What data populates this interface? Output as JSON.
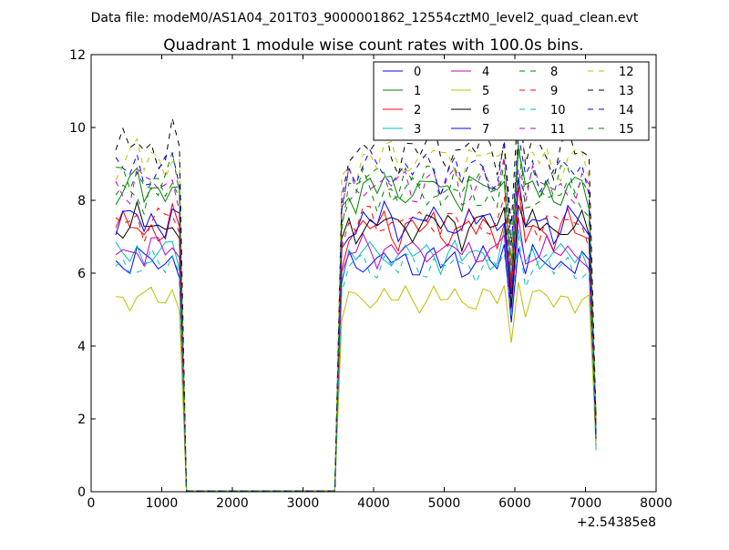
{
  "chart_data": {
    "type": "line",
    "suptitle": "Data file: modeM0/AS1A04_201T03_9000001862_12554cztM0_level2_quad_clean.evt",
    "title": "Quadrant 1 module wise count rates with 100.0s bins.",
    "xlabel": "",
    "ylabel": "",
    "x_offset_label": "+2.54385e8",
    "xlim": [
      0,
      8000
    ],
    "ylim": [
      0,
      12
    ],
    "xticks": [
      0,
      1000,
      2000,
      3000,
      4000,
      5000,
      6000,
      7000,
      8000
    ],
    "yticks": [
      0,
      2,
      4,
      6,
      8,
      10,
      12
    ],
    "xtick_labels": [
      "0",
      "1000",
      "2000",
      "3000",
      "4000",
      "5000",
      "6000",
      "7000",
      "8000"
    ],
    "ytick_labels": [
      "0",
      "2",
      "4",
      "6",
      "8",
      "10",
      "12"
    ],
    "legend_position": "top-right",
    "legend_columns": 4,
    "shape": {
      "x": [
        350,
        450,
        550,
        650,
        750,
        850,
        950,
        1050,
        1150,
        1250,
        1350,
        1450,
        1550,
        1650,
        1750,
        1850,
        1950,
        2050,
        2150,
        2250,
        2350,
        2450,
        2550,
        2650,
        2750,
        2850,
        2950,
        3050,
        3150,
        3250,
        3350,
        3450,
        3550,
        3650,
        3750,
        3850,
        3950,
        4050,
        4150,
        4250,
        4350,
        4450,
        4550,
        4650,
        4750,
        4850,
        4950,
        5050,
        5150,
        5250,
        5350,
        5450,
        5550,
        5650,
        5750,
        5850,
        5950,
        6050,
        6150,
        6250,
        6350,
        6450,
        6550,
        6650,
        6750,
        6850,
        6950,
        7050,
        7150
      ],
      "pattern": [
        1.0,
        1.01,
        0.99,
        1.03,
        0.98,
        1.02,
        1.0,
        0.99,
        1.04,
        0.97,
        0.0,
        0.0,
        0.0,
        0.0,
        0.0,
        0.0,
        0.0,
        0.0,
        0.0,
        0.0,
        0.0,
        0.0,
        0.0,
        0.0,
        0.0,
        0.0,
        0.0,
        0.0,
        0.0,
        0.0,
        0.0,
        0.0,
        0.9,
        1.0,
        0.98,
        1.02,
        1.01,
        0.99,
        1.03,
        1.0,
        0.98,
        1.02,
        1.0,
        0.99,
        1.01,
        1.03,
        0.98,
        1.0,
        1.02,
        0.97,
        1.01,
        0.99,
        1.02,
        1.0,
        0.98,
        1.06,
        0.75,
        1.12,
        0.96,
        1.02,
        0.99,
        1.01,
        0.97,
        1.0,
        1.02,
        0.98,
        1.0,
        0.96,
        0.22
      ],
      "shutdown_level": [
        null,
        null,
        null,
        null,
        null,
        null,
        null,
        null,
        null,
        null,
        0.02,
        0.02,
        0.02,
        0.02,
        0.02,
        0.02,
        0.02,
        0.02,
        0.02,
        0.02,
        0.02,
        0.02,
        0.02,
        0.02,
        0.02,
        0.02,
        0.02,
        0.02,
        0.02,
        0.02,
        0.02,
        0.02,
        null,
        null,
        null,
        null,
        null,
        null,
        null,
        null,
        null,
        null,
        null,
        null,
        null,
        null,
        null,
        null,
        null,
        null,
        null,
        null,
        null,
        null,
        null,
        null,
        null,
        null,
        null,
        null,
        null,
        null,
        null,
        null,
        null,
        null,
        null,
        null,
        null
      ]
    },
    "series": [
      {
        "name": "0",
        "color": "#0000ff",
        "dash": "solid",
        "level": 6.3
      },
      {
        "name": "1",
        "color": "#008000",
        "dash": "solid",
        "level": 8.3
      },
      {
        "name": "2",
        "color": "#ff0000",
        "dash": "solid",
        "level": 7.2
      },
      {
        "name": "3",
        "color": "#00bfbf",
        "dash": "solid",
        "level": 6.5
      },
      {
        "name": "4",
        "color": "#bf00bf",
        "dash": "solid",
        "level": 6.6
      },
      {
        "name": "5",
        "color": "#bfbf00",
        "dash": "solid",
        "level": 5.3
      },
      {
        "name": "6",
        "color": "#000000",
        "dash": "solid",
        "level": 7.3
      },
      {
        "name": "7",
        "color": "#0000ff",
        "dash": "solid",
        "level": 7.4
      },
      {
        "name": "8",
        "color": "#008000",
        "dash": "dashed",
        "level": 8.5
      },
      {
        "name": "9",
        "color": "#ff0000",
        "dash": "dashed",
        "level": 7.4
      },
      {
        "name": "10",
        "color": "#00bfbf",
        "dash": "dashed",
        "level": 6.2
      },
      {
        "name": "11",
        "color": "#bf00bf",
        "dash": "dashed",
        "level": 8.4
      },
      {
        "name": "12",
        "color": "#bfbf00",
        "dash": "dashed",
        "level": 9.1
      },
      {
        "name": "13",
        "color": "#000000",
        "dash": "dashed",
        "level": 9.4
      },
      {
        "name": "14",
        "color": "#0000ff",
        "dash": "dashed",
        "level": 8.8
      },
      {
        "name": "15",
        "color": "#008000",
        "dash": "dashed",
        "level": 8.2
      }
    ]
  }
}
